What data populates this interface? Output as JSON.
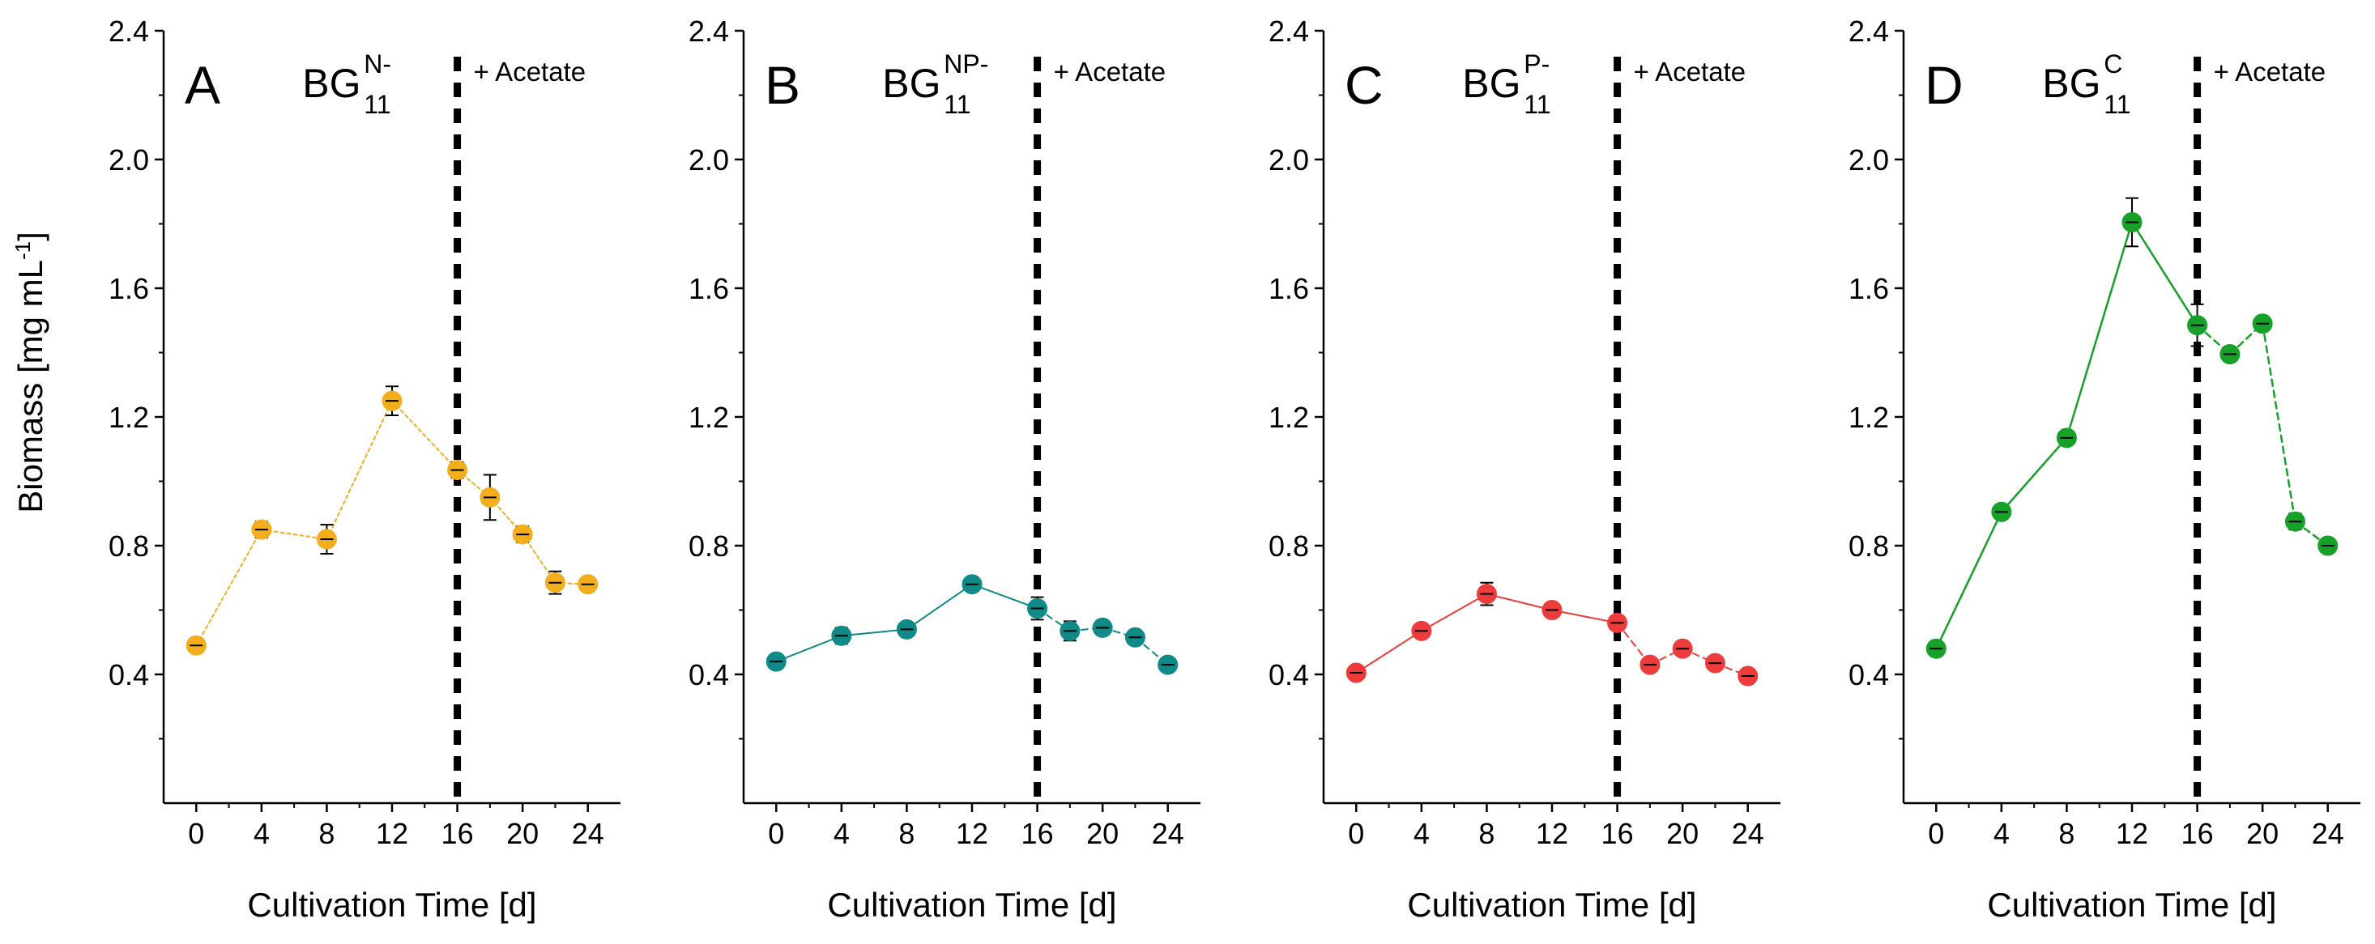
{
  "figure": {
    "y_axis_label": "Biomass [mg mL",
    "y_axis_label_sup": "-1",
    "y_axis_label_end": "]"
  },
  "chart_data": [
    {
      "type": "line",
      "panel_letter": "A",
      "medium_base": "BG",
      "medium_sub": "11",
      "medium_sup": "N-",
      "annotation": "+ Acetate",
      "xlabel": "Cultivation Time [d]",
      "ylabel": "Biomass [mg mL-1]",
      "xlim": [
        -2,
        26
      ],
      "ylim": [
        0,
        2.4
      ],
      "x_ticks": [
        0,
        4,
        8,
        12,
        16,
        20,
        24
      ],
      "x_tick_labels": [
        "0",
        "4",
        "8",
        "12",
        "16",
        "20",
        "24"
      ],
      "y_ticks": [
        0.4,
        0.8,
        1.2,
        1.6,
        2.0,
        2.4
      ],
      "y_tick_labels": [
        "0.4",
        "0.8",
        "1.2",
        "1.6",
        "2.0",
        "2.4"
      ],
      "vline_x": 16,
      "color": "#F2AE1D",
      "line_style_before": "solid",
      "line_style_after": "dashed",
      "line_width": 2,
      "series": [
        {
          "name": "BG11 N-",
          "x": [
            0,
            4,
            8,
            12,
            16,
            18,
            20,
            22,
            24
          ],
          "y": [
            0.49,
            0.85,
            0.82,
            1.25,
            1.035,
            0.95,
            0.835,
            0.685,
            0.68
          ],
          "err": [
            0.02,
            0.025,
            0.045,
            0.045,
            0.025,
            0.07,
            0.025,
            0.035,
            0.02
          ]
        }
      ]
    },
    {
      "type": "line",
      "panel_letter": "B",
      "medium_base": "BG",
      "medium_sub": "11",
      "medium_sup": "NP-",
      "annotation": "+ Acetate",
      "xlabel": "Cultivation Time [d]",
      "ylabel": "",
      "xlim": [
        -2,
        26
      ],
      "ylim": [
        0,
        2.4
      ],
      "x_ticks": [
        0,
        4,
        8,
        12,
        16,
        20,
        24
      ],
      "x_tick_labels": [
        "0",
        "4",
        "8",
        "12",
        "16",
        "20",
        "24"
      ],
      "y_ticks": [
        0.4,
        0.8,
        1.2,
        1.6,
        2.0,
        2.4
      ],
      "y_tick_labels": [
        "0.4",
        "0.8",
        "1.2",
        "1.6",
        "2.0",
        "2.4"
      ],
      "vline_x": 16,
      "color": "#0F8A86",
      "line_style_before": "solid",
      "line_style_after": "dashed",
      "line_width": 2,
      "series": [
        {
          "name": "BG11 NP-",
          "x": [
            0,
            4,
            8,
            12,
            16,
            18,
            20,
            22,
            24
          ],
          "y": [
            0.44,
            0.52,
            0.54,
            0.68,
            0.605,
            0.535,
            0.545,
            0.515,
            0.43
          ],
          "err": [
            0.015,
            0.025,
            0.015,
            0.02,
            0.035,
            0.03,
            0.02,
            0.02,
            0.02
          ]
        }
      ]
    },
    {
      "type": "line",
      "panel_letter": "C",
      "medium_base": "BG",
      "medium_sub": "11",
      "medium_sup": "P-",
      "annotation": "+ Acetate",
      "xlabel": "Cultivation Time [d]",
      "ylabel": "",
      "xlim": [
        -2,
        26
      ],
      "ylim": [
        0,
        2.4
      ],
      "x_ticks": [
        0,
        4,
        8,
        12,
        16,
        20,
        24
      ],
      "x_tick_labels": [
        "0",
        "4",
        "8",
        "12",
        "16",
        "20",
        "24"
      ],
      "y_ticks": [
        0.4,
        0.8,
        1.2,
        1.6,
        2.0,
        2.4
      ],
      "y_tick_labels": [
        "0.4",
        "0.8",
        "1.2",
        "1.6",
        "2.0",
        "2.4"
      ],
      "vline_x": 16,
      "color": "#EE3B3B",
      "line_style_before": "solid",
      "line_style_after": "dashed",
      "line_width": 2,
      "series": [
        {
          "name": "BG11 P-",
          "x": [
            0,
            4,
            8,
            12,
            16,
            18,
            20,
            22,
            24
          ],
          "y": [
            0.405,
            0.535,
            0.65,
            0.6,
            0.56,
            0.43,
            0.48,
            0.435,
            0.395
          ],
          "err": [
            0.015,
            0.015,
            0.035,
            0.015,
            0.015,
            0.015,
            0.015,
            0.015,
            0.015
          ]
        }
      ]
    },
    {
      "type": "line",
      "panel_letter": "D",
      "medium_base": "BG",
      "medium_sub": "11",
      "medium_sup": "C",
      "annotation": "+ Acetate",
      "xlabel": "Cultivation Time [d]",
      "ylabel": "",
      "xlim": [
        -2,
        26
      ],
      "ylim": [
        0,
        2.4
      ],
      "x_ticks": [
        0,
        4,
        8,
        12,
        16,
        20,
        24
      ],
      "x_tick_labels": [
        "0",
        "4",
        "8",
        "12",
        "16",
        "20",
        "24"
      ],
      "y_ticks": [
        0.4,
        0.8,
        1.2,
        1.6,
        2.0,
        2.4
      ],
      "y_tick_labels": [
        "0.4",
        "0.8",
        "1.2",
        "1.6",
        "2.0",
        "2.4"
      ],
      "vline_x": 16,
      "color": "#17A02A",
      "line_style_before": "solid",
      "line_style_after": "dashed",
      "line_width": 2.5,
      "series": [
        {
          "name": "BG11 C",
          "x": [
            0,
            4,
            8,
            12,
            16,
            18,
            20,
            22,
            24
          ],
          "y": [
            0.48,
            0.905,
            1.135,
            1.805,
            1.485,
            1.395,
            1.49,
            0.875,
            0.8
          ],
          "err": [
            0.015,
            0.015,
            0.02,
            0.075,
            0.065,
            0.015,
            0.015,
            0.025,
            0.015
          ]
        }
      ]
    }
  ]
}
